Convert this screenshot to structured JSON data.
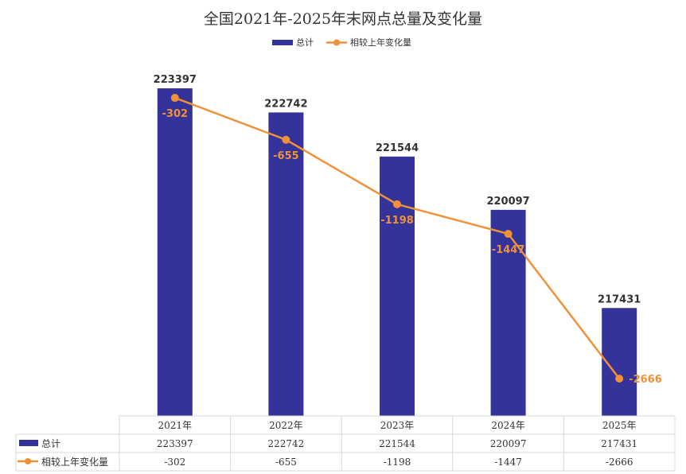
{
  "chart_data": {
    "type": "bar+line",
    "title": "全国2021年-2025年末网点总量及变化量",
    "categories": [
      "2021年",
      "2022年",
      "2023年",
      "2024年",
      "2025年"
    ],
    "series": [
      {
        "name": "总计",
        "kind": "bar",
        "color": "#333399",
        "axis": "left",
        "values": [
          223397,
          222742,
          221544,
          220097,
          217431
        ]
      },
      {
        "name": "相较上年变化量",
        "kind": "line",
        "color": "#F0913A",
        "axis": "right",
        "values": [
          -302,
          -655,
          -1198,
          -1447,
          -2666
        ]
      }
    ],
    "ylim_left": [
      214500,
      224500
    ],
    "ylim_right": [
      -2980,
      120
    ],
    "legend_position": "top-center",
    "data_table": true,
    "grid": false
  },
  "colors": {
    "bar": "#333399",
    "line": "#F0913A",
    "text": "#333333",
    "table_border": "#d9d9d9"
  }
}
